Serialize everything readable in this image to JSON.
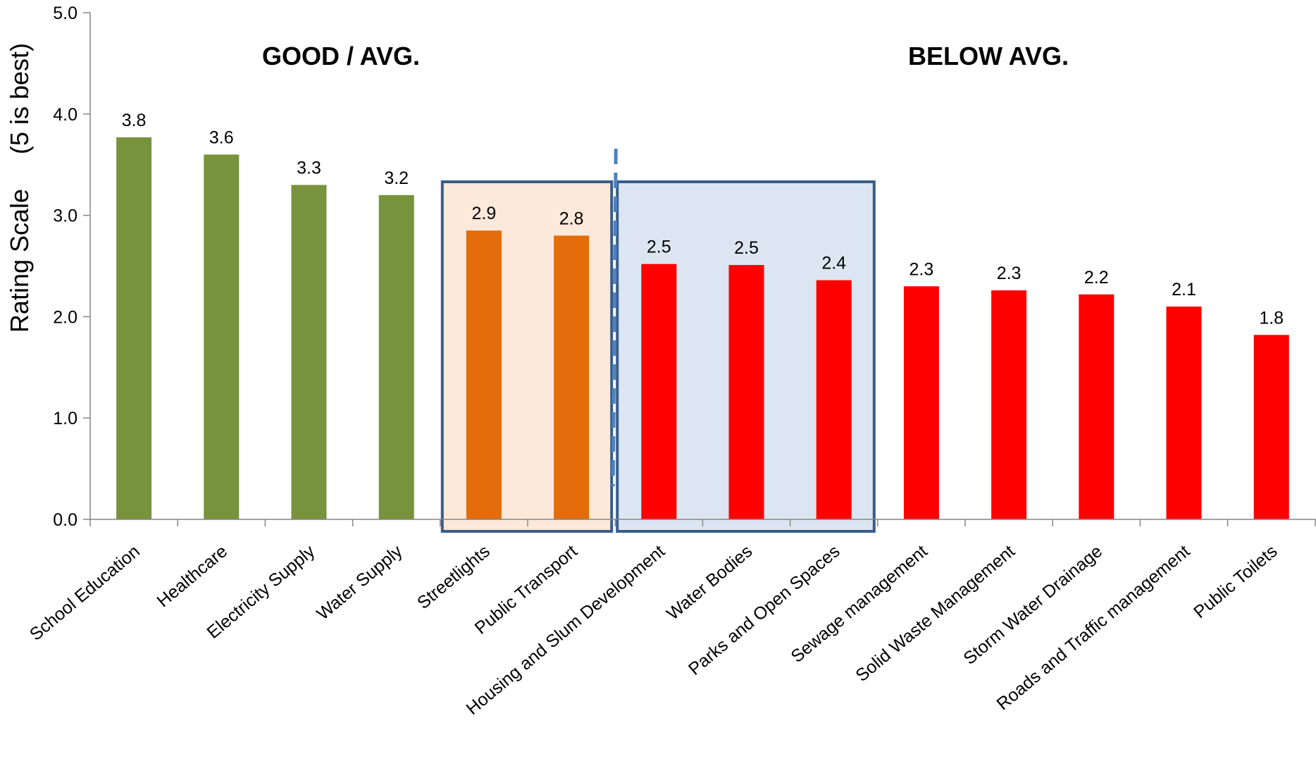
{
  "chart_data": {
    "type": "bar",
    "ylabel_main": "Rating Scale",
    "ylabel_note": "(5 is best)",
    "ylim": [
      0,
      5
    ],
    "yticks": [
      0,
      1,
      2,
      3,
      4,
      5
    ],
    "ytick_labels": [
      "0.0",
      "1.0",
      "2.0",
      "3.0",
      "4.0",
      "5.0"
    ],
    "categories": [
      "School Education",
      "Healthcare",
      "Electricity Supply",
      "Water Supply",
      "Streetlights",
      "Public Transport",
      "Housing and Slum Development",
      "Water Bodies",
      "Parks and Open Spaces",
      "Sewage management",
      "Solid Waste Management",
      "Storm Water Drainage",
      "Roads and Traffic management",
      "Public Toilets"
    ],
    "values": [
      3.77,
      3.6,
      3.3,
      3.2,
      2.85,
      2.8,
      2.52,
      2.51,
      2.36,
      2.3,
      2.26,
      2.22,
      2.1,
      1.82
    ],
    "value_labels": [
      "3.8",
      "3.6",
      "3.3",
      "3.2",
      "2.9",
      "2.8",
      "2.5",
      "2.5",
      "2.4",
      "2.3",
      "2.3",
      "2.2",
      "2.1",
      "1.8"
    ],
    "bar_groups": [
      "good",
      "good",
      "good",
      "good",
      "moderate",
      "moderate",
      "poor",
      "poor",
      "poor",
      "poor",
      "poor",
      "poor",
      "poor",
      "poor"
    ],
    "colors": {
      "good": "#77933C",
      "moderate": "#E46C0A",
      "poor": "#FF0000",
      "box_border": "#385D8A",
      "box_orange_fill": "#FDE9D9",
      "box_blue_fill": "#DCE6F2",
      "divider": "#4F81BD",
      "axis": "#868686"
    },
    "annotations": {
      "left_heading": "GOOD / AVG.",
      "right_heading": "BELOW AVG."
    },
    "highlight_boxes": [
      {
        "name": "orange",
        "from_index": 4,
        "to_index": 5
      },
      {
        "name": "blue",
        "from_index": 6,
        "to_index": 8
      }
    ],
    "divider_between": [
      5,
      6
    ],
    "grid": false,
    "legend": "none"
  }
}
